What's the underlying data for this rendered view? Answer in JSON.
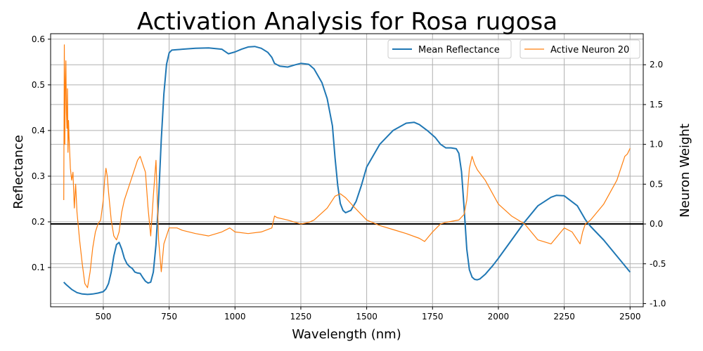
{
  "chart_data": {
    "type": "line",
    "title": "Activation Analysis for Rosa rugosa",
    "xlabel": "Wavelength (nm)",
    "ylabel_left": "Reflectance",
    "ylabel_right": "Neuron Weight",
    "xlim": [
      300,
      2550
    ],
    "ylim_left": [
      0.014,
      0.612
    ],
    "ylim_right": [
      -1.04,
      2.39
    ],
    "x_ticks": [
      500,
      750,
      1000,
      1250,
      1500,
      1750,
      2000,
      2250,
      2500
    ],
    "y_left_ticks": [
      0.1,
      0.2,
      0.3,
      0.4,
      0.5,
      0.6
    ],
    "y_right_ticks": [
      -1.0,
      -0.5,
      0.0,
      0.5,
      1.0,
      1.5,
      2.0
    ],
    "grid": true,
    "zero_line": {
      "axis": "right",
      "value": 0.0,
      "color": "#000000"
    },
    "legend_placement": "top-right",
    "series": [
      {
        "name": "Mean Reflectance",
        "axis": "left",
        "color": "#1f77b4",
        "x": [
          350,
          360,
          380,
          400,
          420,
          440,
          460,
          480,
          500,
          510,
          520,
          530,
          540,
          550,
          560,
          570,
          580,
          590,
          600,
          610,
          620,
          630,
          640,
          650,
          660,
          670,
          680,
          690,
          700,
          710,
          720,
          730,
          740,
          750,
          760,
          780,
          800,
          850,
          900,
          950,
          975,
          1000,
          1025,
          1050,
          1075,
          1100,
          1125,
          1140,
          1150,
          1170,
          1200,
          1230,
          1250,
          1280,
          1300,
          1330,
          1350,
          1370,
          1380,
          1390,
          1400,
          1410,
          1420,
          1440,
          1460,
          1480,
          1500,
          1550,
          1600,
          1650,
          1680,
          1700,
          1730,
          1760,
          1780,
          1800,
          1820,
          1840,
          1850,
          1860,
          1870,
          1880,
          1890,
          1900,
          1910,
          1920,
          1930,
          1950,
          1980,
          2000,
          2050,
          2100,
          2150,
          2200,
          2220,
          2250,
          2300,
          2330,
          2350,
          2400,
          2450,
          2500
        ],
        "y": [
          0.068,
          0.062,
          0.052,
          0.045,
          0.042,
          0.041,
          0.042,
          0.044,
          0.047,
          0.053,
          0.065,
          0.09,
          0.125,
          0.15,
          0.155,
          0.14,
          0.12,
          0.108,
          0.102,
          0.098,
          0.09,
          0.088,
          0.087,
          0.078,
          0.07,
          0.066,
          0.068,
          0.09,
          0.15,
          0.25,
          0.38,
          0.48,
          0.545,
          0.57,
          0.576,
          0.577,
          0.578,
          0.58,
          0.581,
          0.578,
          0.568,
          0.572,
          0.578,
          0.583,
          0.584,
          0.58,
          0.571,
          0.56,
          0.547,
          0.541,
          0.539,
          0.544,
          0.547,
          0.545,
          0.535,
          0.505,
          0.47,
          0.41,
          0.34,
          0.28,
          0.24,
          0.225,
          0.22,
          0.225,
          0.245,
          0.28,
          0.32,
          0.37,
          0.4,
          0.416,
          0.418,
          0.413,
          0.4,
          0.385,
          0.37,
          0.362,
          0.362,
          0.36,
          0.35,
          0.31,
          0.23,
          0.14,
          0.095,
          0.079,
          0.074,
          0.073,
          0.075,
          0.085,
          0.105,
          0.12,
          0.16,
          0.2,
          0.235,
          0.254,
          0.258,
          0.257,
          0.235,
          0.205,
          0.19,
          0.16,
          0.125,
          0.09
        ]
      },
      {
        "name": "Active Neuron 20",
        "axis": "right",
        "color": "#ff7f0e",
        "x": [
          350,
          352,
          354,
          356,
          358,
          360,
          362,
          364,
          366,
          368,
          370,
          375,
          380,
          385,
          390,
          395,
          400,
          410,
          420,
          430,
          440,
          450,
          460,
          470,
          480,
          490,
          500,
          505,
          510,
          515,
          520,
          530,
          540,
          550,
          560,
          570,
          580,
          600,
          620,
          630,
          640,
          650,
          660,
          670,
          680,
          690,
          700,
          710,
          720,
          730,
          750,
          780,
          800,
          850,
          900,
          950,
          980,
          1000,
          1050,
          1100,
          1140,
          1150,
          1160,
          1200,
          1250,
          1280,
          1300,
          1350,
          1380,
          1400,
          1420,
          1450,
          1500,
          1550,
          1600,
          1650,
          1700,
          1720,
          1750,
          1780,
          1800,
          1850,
          1870,
          1880,
          1890,
          1900,
          1910,
          1920,
          1950,
          2000,
          2050,
          2100,
          2150,
          2200,
          2250,
          2280,
          2300,
          2310,
          2320,
          2330,
          2350,
          2400,
          2450,
          2480,
          2490,
          2500
        ],
        "y": [
          0.3,
          2.25,
          1.0,
          1.8,
          2.05,
          1.4,
          1.2,
          1.7,
          0.9,
          1.3,
          1.1,
          0.7,
          0.55,
          0.65,
          0.2,
          0.5,
          0.15,
          -0.2,
          -0.5,
          -0.75,
          -0.8,
          -0.6,
          -0.3,
          -0.1,
          0.0,
          0.05,
          0.3,
          0.55,
          0.7,
          0.6,
          0.4,
          0.05,
          -0.15,
          -0.2,
          -0.1,
          0.15,
          0.3,
          0.5,
          0.7,
          0.8,
          0.85,
          0.75,
          0.65,
          0.2,
          -0.15,
          0.35,
          0.8,
          -0.2,
          -0.6,
          -0.25,
          -0.05,
          -0.05,
          -0.08,
          -0.12,
          -0.15,
          -0.1,
          -0.05,
          -0.1,
          -0.12,
          -0.1,
          -0.05,
          0.1,
          0.08,
          0.05,
          0.0,
          0.02,
          0.05,
          0.2,
          0.35,
          0.38,
          0.33,
          0.22,
          0.05,
          -0.02,
          -0.07,
          -0.12,
          -0.18,
          -0.22,
          -0.1,
          0.0,
          0.02,
          0.05,
          0.12,
          0.3,
          0.7,
          0.85,
          0.75,
          0.68,
          0.55,
          0.25,
          0.1,
          0.0,
          -0.2,
          -0.25,
          -0.05,
          -0.1,
          -0.2,
          -0.25,
          -0.1,
          0.0,
          0.05,
          0.25,
          0.55,
          0.85,
          0.88,
          0.95
        ]
      }
    ]
  }
}
